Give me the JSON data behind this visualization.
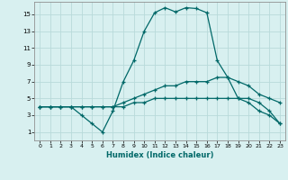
{
  "title": "",
  "xlabel": "Humidex (Indice chaleur)",
  "bg_color": "#d8f0f0",
  "grid_color": "#b8dada",
  "line_color": "#006868",
  "xlim": [
    -0.5,
    23.5
  ],
  "ylim": [
    0,
    16.5
  ],
  "xticks": [
    0,
    1,
    2,
    3,
    4,
    5,
    6,
    7,
    8,
    9,
    10,
    11,
    12,
    13,
    14,
    15,
    16,
    17,
    18,
    19,
    20,
    21,
    22,
    23
  ],
  "yticks": [
    1,
    3,
    5,
    7,
    9,
    11,
    13,
    15
  ],
  "series": [
    {
      "x": [
        0,
        1,
        2,
        3,
        4,
        5,
        6,
        7,
        8,
        9,
        10,
        11,
        12,
        13,
        14,
        15,
        16,
        17,
        18,
        19,
        20,
        21,
        22,
        23
      ],
      "y": [
        4,
        4,
        4,
        4,
        3,
        2,
        1,
        3.5,
        7,
        9.5,
        13,
        15.2,
        15.8,
        15.3,
        15.8,
        15.7,
        15.2,
        9.5,
        7.5,
        5,
        4.5,
        3.5,
        3,
        2
      ]
    },
    {
      "x": [
        0,
        1,
        2,
        3,
        4,
        5,
        6,
        7,
        8,
        9,
        10,
        11,
        12,
        13,
        14,
        15,
        16,
        17,
        18,
        19,
        20,
        21,
        22,
        23
      ],
      "y": [
        4,
        4,
        4,
        4,
        4,
        4,
        4,
        4,
        4.5,
        5,
        5.5,
        6,
        6.5,
        6.5,
        7,
        7,
        7,
        7.5,
        7.5,
        7,
        6.5,
        5.5,
        5,
        4.5
      ]
    },
    {
      "x": [
        0,
        1,
        2,
        3,
        4,
        5,
        6,
        7,
        8,
        9,
        10,
        11,
        12,
        13,
        14,
        15,
        16,
        17,
        18,
        19,
        20,
        21,
        22,
        23
      ],
      "y": [
        4,
        4,
        4,
        4,
        4,
        4,
        4,
        4,
        4,
        4.5,
        4.5,
        5,
        5,
        5,
        5,
        5,
        5,
        5,
        5,
        5,
        5,
        4.5,
        3.5,
        2
      ]
    }
  ]
}
